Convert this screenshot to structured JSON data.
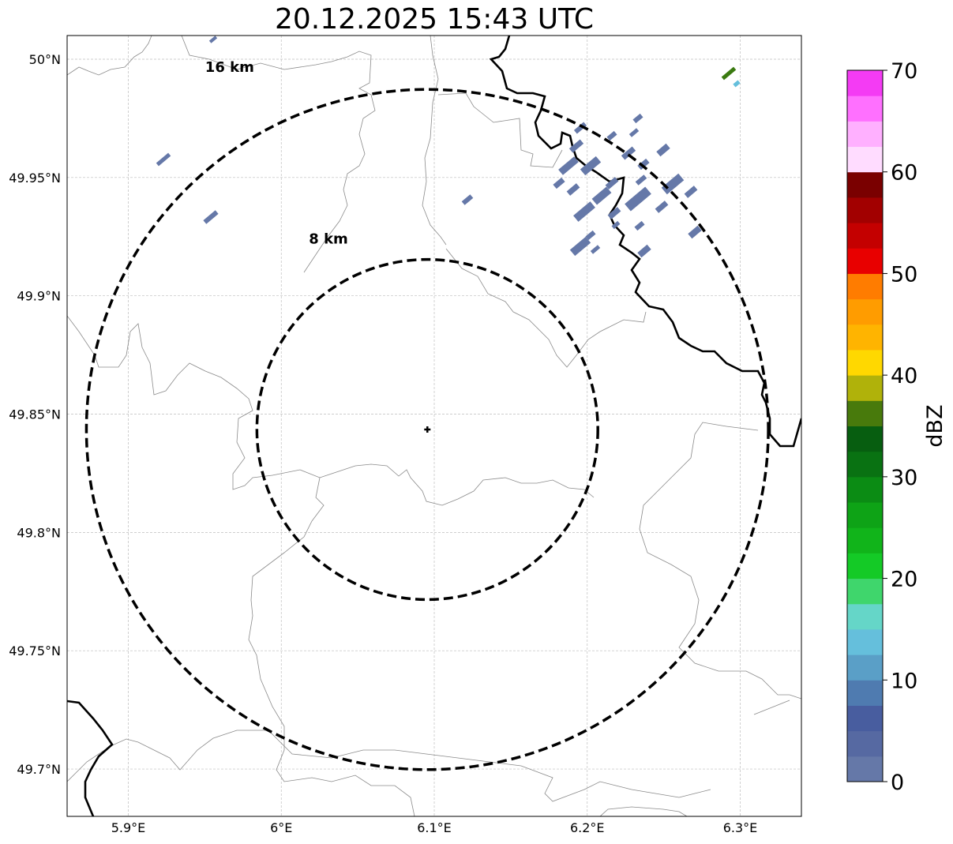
{
  "title": "20.12.2025 15:43 UTC",
  "map": {
    "lon_range": [
      5.86,
      6.34
    ],
    "lat_range": [
      49.68,
      50.01
    ],
    "x_ticks": [
      {
        "value": 5.9,
        "label": "5.9°E"
      },
      {
        "value": 6.0,
        "label": "6°E"
      },
      {
        "value": 6.1,
        "label": "6.1°E"
      },
      {
        "value": 6.2,
        "label": "6.2°E"
      },
      {
        "value": 6.3,
        "label": "6.3°E"
      }
    ],
    "y_ticks": [
      {
        "value": 50.0,
        "label": "50°N"
      },
      {
        "value": 49.95,
        "label": "49.95°N"
      },
      {
        "value": 49.9,
        "label": "49.9°N"
      },
      {
        "value": 49.85,
        "label": "49.85°N"
      },
      {
        "value": 49.8,
        "label": "49.8°N"
      },
      {
        "value": 49.75,
        "label": "49.75°N"
      },
      {
        "value": 49.7,
        "label": "49.7°N"
      }
    ],
    "grid": true,
    "radar_site": {
      "lon": 6.0955,
      "lat": 49.8435
    },
    "range_rings": [
      {
        "radius_km": 8,
        "label": "8 km"
      },
      {
        "radius_km": 16,
        "label": "16 km"
      }
    ]
  },
  "colorbar": {
    "label": "dBZ",
    "min": 0,
    "max": 70,
    "step": 2.5,
    "tick_values": [
      0,
      10,
      20,
      30,
      40,
      50,
      60,
      70
    ],
    "tick_labels": [
      "0",
      "10",
      "20",
      "30",
      "40",
      "50",
      "60",
      "70"
    ],
    "colors": [
      "#6578a8",
      "#5669a2",
      "#485d9f",
      "#4f7bb0",
      "#5a9fc7",
      "#65bfdc",
      "#65d6c8",
      "#3fd66c",
      "#14ca26",
      "#11b41a",
      "#0ea316",
      "#0b8c14",
      "#097212",
      "#075e10",
      "#487a0c",
      "#b0b20a",
      "#ffd800",
      "#ffb400",
      "#ff9c00",
      "#ff7c00",
      "#e80000",
      "#c40000",
      "#a20000",
      "#7a0000",
      "#ffdcff",
      "#ffb0ff",
      "#ff70ff",
      "#f43bf4"
    ]
  }
}
